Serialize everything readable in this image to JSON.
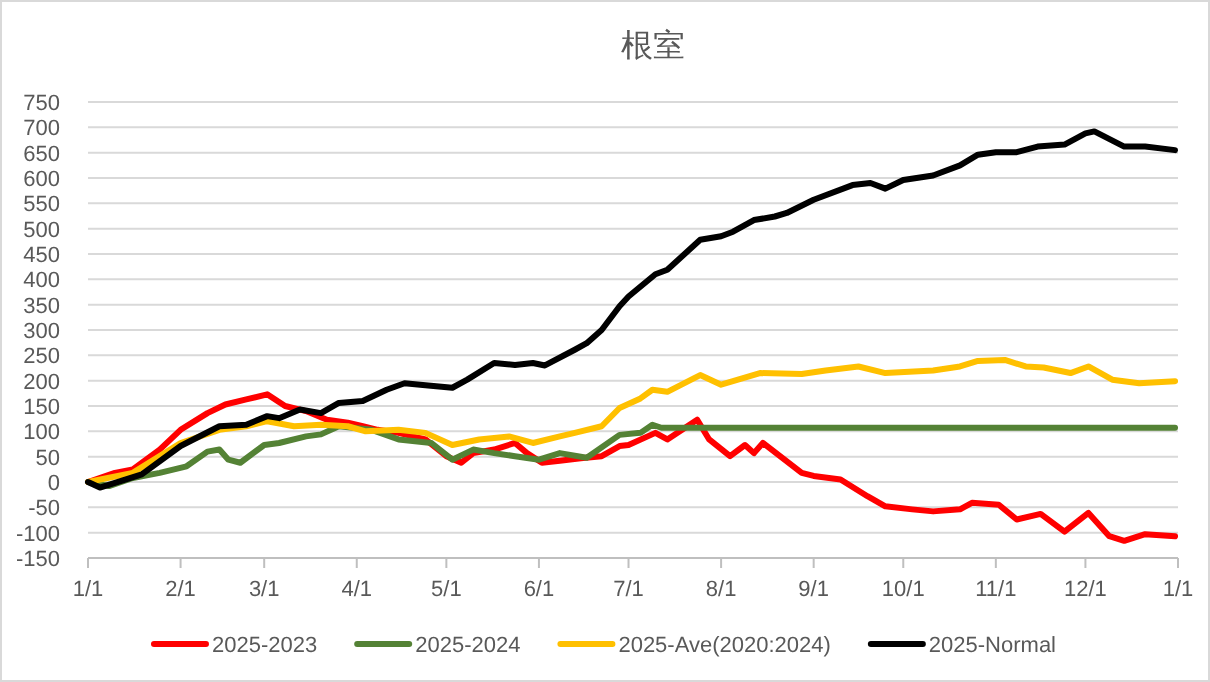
{
  "chart_data": {
    "type": "line",
    "title": "根室",
    "xlim": [
      "2025-01-01",
      "2026-01-01"
    ],
    "xticks": [
      {
        "value": "2025-01-01",
        "label": "1/1"
      },
      {
        "value": "2025-02-01",
        "label": "2/1"
      },
      {
        "value": "2025-03-01",
        "label": "3/1"
      },
      {
        "value": "2025-04-01",
        "label": "4/1"
      },
      {
        "value": "2025-05-01",
        "label": "5/1"
      },
      {
        "value": "2025-06-01",
        "label": "6/1"
      },
      {
        "value": "2025-07-01",
        "label": "7/1"
      },
      {
        "value": "2025-08-01",
        "label": "8/1"
      },
      {
        "value": "2025-09-01",
        "label": "9/1"
      },
      {
        "value": "2025-10-01",
        "label": "10/1"
      },
      {
        "value": "2025-11-01",
        "label": "11/1"
      },
      {
        "value": "2025-12-01",
        "label": "12/1"
      },
      {
        "value": "2026-01-01",
        "label": "1/1"
      }
    ],
    "ylim": [
      -150,
      750
    ],
    "yticks": [
      -150,
      -100,
      -50,
      0,
      50,
      100,
      150,
      200,
      250,
      300,
      350,
      400,
      450,
      500,
      550,
      600,
      650,
      700,
      750
    ],
    "grid": "y",
    "legend": "bottom",
    "marker": "none",
    "line_style": "solid",
    "series": [
      {
        "name": "2025-2023",
        "color": "#ff0000",
        "x": [
          "2025-01-01",
          "2025-01-10",
          "2025-01-16",
          "2025-01-25",
          "2025-02-01",
          "2025-02-10",
          "2025-02-16",
          "2025-02-23",
          "2025-03-02",
          "2025-03-08",
          "2025-03-15",
          "2025-03-22",
          "2025-03-29",
          "2025-04-03",
          "2025-04-08",
          "2025-04-15",
          "2025-04-24",
          "2025-05-01",
          "2025-05-06",
          "2025-05-10",
          "2025-05-17",
          "2025-05-24",
          "2025-05-28",
          "2025-06-02",
          "2025-06-08",
          "2025-06-15",
          "2025-06-22",
          "2025-06-28",
          "2025-07-01",
          "2025-07-10",
          "2025-07-14",
          "2025-07-24",
          "2025-07-28",
          "2025-08-04",
          "2025-08-09",
          "2025-08-12",
          "2025-08-15",
          "2025-08-28",
          "2025-09-01",
          "2025-09-10",
          "2025-09-19",
          "2025-09-25",
          "2025-10-04",
          "2025-10-11",
          "2025-10-20",
          "2025-10-24",
          "2025-11-02",
          "2025-11-08",
          "2025-11-16",
          "2025-11-24",
          "2025-12-02",
          "2025-12-09",
          "2025-12-14",
          "2025-12-21",
          "2025-12-31"
        ],
        "values": [
          0,
          18,
          25,
          64,
          103,
          136,
          153,
          163,
          173,
          150,
          140,
          123,
          117,
          110,
          103,
          97,
          84,
          51,
          38,
          57,
          64,
          77,
          57,
          38,
          42,
          47,
          51,
          71,
          73,
          97,
          84,
          123,
          84,
          51,
          73,
          57,
          77,
          18,
          12,
          5,
          -28,
          -48,
          -54,
          -58,
          -54,
          -41,
          -45,
          -74,
          -63,
          -98,
          -61,
          -107,
          -116,
          -103,
          -107
        ]
      },
      {
        "name": "2025-2024",
        "color": "#548235",
        "x": [
          "2025-01-01",
          "2025-01-08",
          "2025-01-16",
          "2025-01-25",
          "2025-02-03",
          "2025-02-10",
          "2025-02-14",
          "2025-02-17",
          "2025-02-21",
          "2025-03-01",
          "2025-03-06",
          "2025-03-15",
          "2025-03-20",
          "2025-03-26",
          "2025-04-06",
          "2025-04-15",
          "2025-04-26",
          "2025-05-03",
          "2025-05-10",
          "2025-05-17",
          "2025-05-24",
          "2025-06-01",
          "2025-06-08",
          "2025-06-17",
          "2025-06-28",
          "2025-07-05",
          "2025-07-09",
          "2025-07-12",
          "2025-12-31"
        ],
        "values": [
          0,
          -8,
          8,
          18,
          31,
          60,
          64,
          44,
          38,
          73,
          77,
          90,
          94,
          110,
          103,
          84,
          77,
          44,
          64,
          57,
          51,
          44,
          57,
          48,
          93,
          97,
          113,
          107,
          107
        ]
      },
      {
        "name": "2025-Ave(2020:2024)",
        "color": "#ffc000",
        "x": [
          "2025-01-01",
          "2025-01-16",
          "2025-02-01",
          "2025-02-14",
          "2025-02-23",
          "2025-03-02",
          "2025-03-11",
          "2025-03-20",
          "2025-03-29",
          "2025-04-04",
          "2025-04-15",
          "2025-04-24",
          "2025-05-03",
          "2025-05-12",
          "2025-05-22",
          "2025-05-30",
          "2025-06-08",
          "2025-06-13",
          "2025-06-22",
          "2025-06-28",
          "2025-07-05",
          "2025-07-09",
          "2025-07-14",
          "2025-07-23",
          "2025-07-25",
          "2025-08-01",
          "2025-08-14",
          "2025-08-28",
          "2025-09-05",
          "2025-09-16",
          "2025-09-25",
          "2025-10-11",
          "2025-10-20",
          "2025-10-26",
          "2025-11-04",
          "2025-11-11",
          "2025-11-17",
          "2025-11-26",
          "2025-12-02",
          "2025-12-10",
          "2025-12-19",
          "2025-12-31"
        ],
        "values": [
          0,
          18,
          77,
          103,
          110,
          120,
          110,
          113,
          110,
          100,
          103,
          97,
          73,
          84,
          90,
          77,
          90,
          97,
          110,
          146,
          165,
          182,
          178,
          205,
          211,
          192,
          215,
          213,
          220,
          228,
          215,
          220,
          228,
          239,
          241,
          228,
          226,
          215,
          228,
          202,
          195,
          199
        ]
      },
      {
        "name": "2025-Normal",
        "color": "#000000",
        "x": [
          "2025-01-01",
          "2025-01-05",
          "2025-01-19",
          "2025-02-01",
          "2025-02-14",
          "2025-02-23",
          "2025-03-02",
          "2025-03-06",
          "2025-03-13",
          "2025-03-20",
          "2025-03-26",
          "2025-04-03",
          "2025-04-11",
          "2025-04-17",
          "2025-04-24",
          "2025-05-03",
          "2025-05-08",
          "2025-05-17",
          "2025-05-24",
          "2025-05-30",
          "2025-06-03",
          "2025-06-13",
          "2025-06-17",
          "2025-06-22",
          "2025-06-28",
          "2025-07-01",
          "2025-07-10",
          "2025-07-14",
          "2025-07-25",
          "2025-08-01",
          "2025-08-05",
          "2025-08-12",
          "2025-08-19",
          "2025-08-23",
          "2025-09-01",
          "2025-09-14",
          "2025-09-20",
          "2025-09-25",
          "2025-10-01",
          "2025-10-11",
          "2025-10-20",
          "2025-10-26",
          "2025-11-01",
          "2025-11-08",
          "2025-11-15",
          "2025-11-24",
          "2025-12-01",
          "2025-12-04",
          "2025-12-14",
          "2025-12-21",
          "2025-12-31"
        ],
        "values": [
          0,
          -11,
          15,
          71,
          110,
          113,
          130,
          126,
          143,
          136,
          156,
          160,
          182,
          195,
          191,
          186,
          202,
          235,
          231,
          235,
          230,
          261,
          274,
          300,
          347,
          366,
          410,
          419,
          478,
          485,
          494,
          517,
          524,
          531,
          557,
          586,
          590,
          579,
          596,
          605,
          625,
          646,
          651,
          651,
          662,
          666,
          688,
          692,
          662,
          662,
          655
        ]
      }
    ]
  }
}
